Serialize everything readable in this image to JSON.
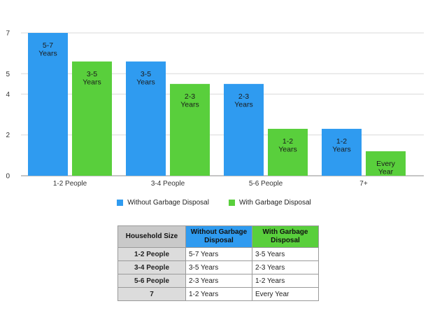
{
  "chart_data": {
    "type": "bar",
    "categories": [
      "1-2 People",
      "3-4 People",
      "5-6 People",
      "7+"
    ],
    "yticks": [
      0,
      2,
      4,
      5,
      7
    ],
    "ylim": [
      0,
      7
    ],
    "series": [
      {
        "name": "Without Garbage Disposal",
        "color": "#2f9bf0",
        "values": [
          7,
          5.6,
          4.5,
          2.3
        ],
        "labels": [
          [
            "5-7",
            "Years"
          ],
          [
            "3-5",
            "Years"
          ],
          [
            "2-3",
            "Years"
          ],
          [
            "1-2",
            "Years"
          ]
        ]
      },
      {
        "name": "With Garbage Disposal",
        "color": "#59cf3c",
        "values": [
          5.6,
          4.5,
          2.3,
          1.2
        ],
        "labels": [
          [
            "3-5",
            "Years"
          ],
          [
            "2-3",
            "Years"
          ],
          [
            "1-2",
            "Years"
          ],
          [
            "Every",
            "Year"
          ]
        ]
      }
    ],
    "legend_position": "bottom"
  },
  "legend": {
    "without": "Without Garbage Disposal",
    "with": "With Garbage Disposal"
  },
  "table": {
    "headers": [
      "Household Size",
      "Without Garbage Disposal",
      "With Garbage Disposal"
    ],
    "rows": [
      [
        "1-2 People",
        "5-7 Years",
        "3-5 Years"
      ],
      [
        "3-4 People",
        "3-5 Years",
        "2-3 Years"
      ],
      [
        "5-6 People",
        "2-3 Years",
        "1-2 Years"
      ],
      [
        "7",
        "1-2 Years",
        "Every Year"
      ]
    ]
  },
  "colors": {
    "blue": "#2f9bf0",
    "green": "#59cf3c",
    "gray_header": "#c9c9c9",
    "gray_row": "#dcdcdc"
  }
}
